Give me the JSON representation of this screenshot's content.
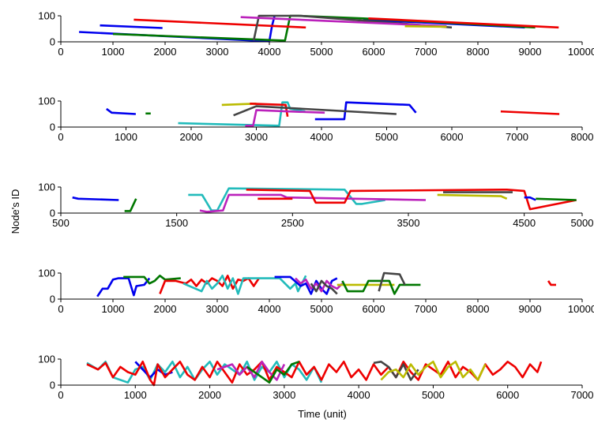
{
  "figure": {
    "ylabel": "Node's ID",
    "xlabel": "Time (unit)"
  },
  "colors": {
    "blue": "#0000ee",
    "green": "#007700",
    "red": "#ee0000",
    "cyan": "#22bbbb",
    "magenta": "#bb22bb",
    "olive": "#bbbb00",
    "darkgray": "#444444"
  },
  "chart_data": [
    {
      "type": "line",
      "xlim": [
        0,
        10000
      ],
      "ylim": [
        0,
        100
      ],
      "xticks": [
        0,
        1000,
        2000,
        3000,
        4000,
        5000,
        6000,
        7000,
        8000,
        9000,
        10000
      ],
      "yticks": [
        0,
        100
      ],
      "series": [
        {
          "color": "blue",
          "x": [
            350,
            4000
          ],
          "y": [
            38,
            2
          ]
        },
        {
          "color": "blue",
          "x": [
            750,
            1950
          ],
          "y": [
            63,
            53
          ]
        },
        {
          "color": "blue",
          "x": [
            4000,
            4050,
            4100
          ],
          "y": [
            2,
            60,
            100
          ]
        },
        {
          "color": "blue",
          "x": [
            5800,
            8900
          ],
          "y": [
            85,
            55
          ]
        },
        {
          "color": "green",
          "x": [
            1000,
            4300,
            4400,
            4550,
            5800,
            9100
          ],
          "y": [
            30,
            5,
            100,
            100,
            90,
            55
          ]
        },
        {
          "color": "red",
          "x": [
            1400,
            4700
          ],
          "y": [
            85,
            55
          ]
        },
        {
          "color": "red",
          "x": [
            5900,
            9550
          ],
          "y": [
            90,
            55
          ]
        },
        {
          "color": "darkgray",
          "x": [
            3700,
            3800,
            4600,
            7500
          ],
          "y": [
            5,
            100,
            100,
            55
          ]
        },
        {
          "color": "magenta",
          "x": [
            3450,
            7400
          ],
          "y": [
            95,
            60
          ]
        },
        {
          "color": "olive",
          "x": [
            6600,
            7400
          ],
          "y": [
            60,
            58
          ]
        }
      ]
    },
    {
      "type": "line",
      "xlim": [
        0,
        8000
      ],
      "ylim": [
        0,
        100
      ],
      "xticks": [
        0,
        1000,
        2000,
        3000,
        4000,
        5000,
        6000,
        7000,
        8000
      ],
      "yticks": [
        0,
        100
      ],
      "series": [
        {
          "color": "blue",
          "x": [
            700,
            780,
            1150
          ],
          "y": [
            70,
            55,
            50
          ]
        },
        {
          "color": "blue",
          "x": [
            3900,
            4350,
            4380,
            5350,
            5450
          ],
          "y": [
            30,
            30,
            95,
            85,
            55
          ]
        },
        {
          "color": "green",
          "x": [
            1300,
            1380
          ],
          "y": [
            52,
            52
          ]
        },
        {
          "color": "cyan",
          "x": [
            1800,
            3350,
            3400,
            3480,
            3520,
            3750
          ],
          "y": [
            15,
            5,
            95,
            95,
            70,
            60
          ]
        },
        {
          "color": "olive",
          "x": [
            2470,
            3000
          ],
          "y": [
            85,
            90
          ]
        },
        {
          "color": "red",
          "x": [
            2900,
            3450,
            3480
          ],
          "y": [
            90,
            85,
            40
          ]
        },
        {
          "color": "red",
          "x": [
            6750,
            7650
          ],
          "y": [
            60,
            50
          ]
        },
        {
          "color": "magenta",
          "x": [
            2830,
            2950,
            3000,
            3500,
            4050
          ],
          "y": [
            5,
            5,
            65,
            60,
            55
          ]
        },
        {
          "color": "darkgray",
          "x": [
            2650,
            3000,
            5150
          ],
          "y": [
            45,
            80,
            50
          ]
        }
      ]
    },
    {
      "type": "line",
      "xlim": [
        500,
        5000
      ],
      "ylim": [
        0,
        100
      ],
      "xticks": [
        500,
        1500,
        2500,
        3500,
        4500,
        5000
      ],
      "xtick_labels": [
        "500",
        "1500",
        "2500",
        "3500",
        "4500",
        "5000"
      ],
      "yticks": [
        0,
        100
      ],
      "series": [
        {
          "color": "blue",
          "x": [
            600,
            650,
            1000
          ],
          "y": [
            60,
            55,
            50
          ]
        },
        {
          "color": "green",
          "x": [
            1050,
            1100,
            1150
          ],
          "y": [
            8,
            8,
            55
          ]
        },
        {
          "color": "cyan",
          "x": [
            1600,
            1720,
            1800,
            1850,
            1950,
            2950,
            3050,
            3100,
            3300
          ],
          "y": [
            70,
            70,
            10,
            10,
            95,
            90,
            35,
            35,
            50
          ]
        },
        {
          "color": "magenta",
          "x": [
            1700,
            1760,
            1900,
            1950,
            2400,
            2450,
            3650
          ],
          "y": [
            10,
            5,
            10,
            70,
            70,
            60,
            50
          ]
        },
        {
          "color": "red",
          "x": [
            2200,
            2500
          ],
          "y": [
            55,
            55
          ]
        },
        {
          "color": "red",
          "x": [
            2100,
            2650,
            2700,
            2950,
            3000,
            4350,
            4500,
            4550,
            4950
          ],
          "y": [
            90,
            85,
            40,
            40,
            85,
            90,
            85,
            15,
            50
          ]
        },
        {
          "color": "olive",
          "x": [
            3750,
            4300,
            4350
          ],
          "y": [
            70,
            65,
            55
          ]
        },
        {
          "color": "blue",
          "x": [
            4500,
            4550,
            4600
          ],
          "y": [
            60,
            60,
            50
          ]
        },
        {
          "color": "darkgray",
          "x": [
            3800,
            4400
          ],
          "y": [
            80,
            80
          ]
        },
        {
          "color": "green",
          "x": [
            4600,
            4950
          ],
          "y": [
            55,
            50
          ]
        }
      ]
    },
    {
      "type": "line",
      "xlim": [
        0,
        10000
      ],
      "ylim": [
        0,
        100
      ],
      "xticks": [
        0,
        1000,
        2000,
        3000,
        4000,
        5000,
        6000,
        7000,
        8000,
        9000,
        10000
      ],
      "yticks": [
        0,
        100
      ],
      "series": [
        {
          "color": "blue",
          "x": [
            700,
            800,
            900,
            1000,
            1100,
            1300,
            1400,
            1450,
            1600,
            1700
          ],
          "y": [
            10,
            40,
            40,
            75,
            80,
            80,
            15,
            50,
            55,
            80
          ]
        },
        {
          "color": "green",
          "x": [
            1200,
            1600,
            1700,
            1800,
            1900,
            2000,
            2300
          ],
          "y": [
            85,
            85,
            60,
            70,
            90,
            75,
            80
          ]
        },
        {
          "color": "red",
          "x": [
            1900,
            2000,
            2200,
            2400,
            2500,
            2600,
            2700,
            2800,
            2900,
            3000,
            3100,
            3200,
            3300,
            3400,
            3500,
            3600,
            3700,
            3800
          ],
          "y": [
            20,
            70,
            70,
            60,
            75,
            50,
            75,
            60,
            80,
            70,
            50,
            90,
            40,
            75,
            70,
            80,
            50,
            80
          ]
        },
        {
          "color": "cyan",
          "x": [
            2350,
            2700,
            2800,
            2900,
            3000,
            3100,
            3200,
            3300,
            3400,
            3500,
            3600,
            4200,
            4400,
            4500,
            4550,
            4700
          ],
          "y": [
            60,
            30,
            70,
            40,
            60,
            90,
            40,
            80,
            20,
            80,
            80,
            80,
            40,
            60,
            30,
            90
          ]
        },
        {
          "color": "blue",
          "x": [
            4100,
            4400,
            4600,
            4700,
            4800,
            4900,
            5000,
            5100,
            5200,
            5300
          ],
          "y": [
            85,
            85,
            50,
            60,
            20,
            70,
            40,
            20,
            70,
            80
          ]
        },
        {
          "color": "magenta",
          "x": [
            4500,
            4600,
            4700,
            4800,
            4900,
            5000,
            5100,
            5200,
            5300,
            5400
          ],
          "y": [
            80,
            60,
            75,
            40,
            60,
            30,
            70,
            50,
            40,
            60
          ]
        },
        {
          "color": "darkgray",
          "x": [
            4800,
            4900,
            5000,
            5100,
            5200,
            5300
          ],
          "y": [
            60,
            30,
            70,
            50,
            40,
            20
          ]
        },
        {
          "color": "olive",
          "x": [
            5300,
            5700,
            6300,
            6400
          ],
          "y": [
            55,
            55,
            55,
            55
          ]
        },
        {
          "color": "green",
          "x": [
            5400,
            5500,
            5800,
            5900,
            6300,
            6400,
            6500,
            6900
          ],
          "y": [
            70,
            30,
            30,
            70,
            70,
            20,
            55,
            55
          ]
        },
        {
          "color": "darkgray",
          "x": [
            6100,
            6200,
            6500,
            6600
          ],
          "y": [
            30,
            100,
            95,
            55
          ]
        },
        {
          "color": "red",
          "x": [
            9350,
            9400,
            9500
          ],
          "y": [
            70,
            55,
            55
          ]
        }
      ]
    },
    {
      "type": "line",
      "xlim": [
        0,
        7000
      ],
      "ylim": [
        0,
        100
      ],
      "xticks": [
        0,
        1000,
        2000,
        3000,
        4000,
        5000,
        6000,
        7000
      ],
      "yticks": [
        0,
        100
      ],
      "series": [
        {
          "color": "cyan",
          "x": [
            350,
            500,
            600,
            700,
            900,
            1000,
            1100,
            1200,
            1300,
            1400,
            1500,
            1600,
            1700,
            1800,
            1900,
            2000,
            2100,
            2200,
            2300,
            2400,
            2500,
            2600,
            2700,
            2800,
            2900,
            3000,
            3100,
            3200,
            3300,
            3400,
            3500
          ],
          "y": [
            85,
            60,
            90,
            30,
            10,
            60,
            70,
            20,
            80,
            50,
            90,
            30,
            70,
            20,
            60,
            90,
            40,
            80,
            60,
            40,
            90,
            20,
            70,
            50,
            90,
            30,
            80,
            60,
            20,
            70,
            10
          ]
        },
        {
          "color": "blue",
          "x": [
            1000,
            1100,
            1200,
            1300,
            1400,
            1500
          ],
          "y": [
            90,
            60,
            30,
            60,
            40,
            50
          ]
        },
        {
          "color": "red",
          "x": [
            350,
            500,
            600,
            700,
            800,
            900,
            1000,
            1100,
            1200,
            1250,
            1300,
            1400,
            1500,
            1600,
            1700,
            1800,
            1900,
            2000,
            2100,
            2200,
            2300,
            2400,
            2500,
            2600,
            2700,
            2800,
            2900,
            3000,
            3100,
            3200,
            3300,
            3400,
            3500,
            3600,
            3700,
            3800,
            3900,
            4000,
            4100,
            4200,
            4300,
            4400,
            4500,
            4600,
            4700,
            4800,
            4900,
            5000,
            5100,
            5200,
            5300,
            5400,
            5500,
            5600,
            5700,
            5800,
            5900,
            6000,
            6100,
            6200,
            6300,
            6400,
            6450
          ],
          "y": [
            80,
            60,
            85,
            30,
            70,
            50,
            40,
            90,
            20,
            0,
            80,
            30,
            60,
            90,
            40,
            20,
            70,
            30,
            90,
            50,
            10,
            80,
            40,
            60,
            90,
            20,
            70,
            50,
            30,
            90,
            40,
            70,
            20,
            80,
            50,
            90,
            30,
            60,
            20,
            80,
            40,
            70,
            30,
            90,
            50,
            20,
            80,
            60,
            40,
            90,
            30,
            70,
            50,
            20,
            80,
            40,
            60,
            90,
            70,
            30,
            80,
            50,
            90
          ]
        },
        {
          "color": "magenta",
          "x": [
            2100,
            2300,
            2400,
            2500,
            2600,
            2700,
            2800,
            2900,
            3000
          ],
          "y": [
            60,
            80,
            40,
            70,
            30,
            90,
            50,
            20,
            80
          ]
        },
        {
          "color": "green",
          "x": [
            2500,
            2700,
            2800,
            2900,
            3000,
            3100,
            3200
          ],
          "y": [
            70,
            30,
            10,
            60,
            40,
            80,
            90
          ]
        },
        {
          "color": "darkgray",
          "x": [
            4200,
            4300,
            4400,
            4500,
            4600,
            4700,
            4800
          ],
          "y": [
            85,
            90,
            70,
            30,
            80,
            20,
            60
          ]
        },
        {
          "color": "olive",
          "x": [
            4300,
            4400,
            4500,
            4600,
            4700,
            4800,
            4900,
            5000,
            5100,
            5200,
            5300,
            5400,
            5500,
            5600,
            5700
          ],
          "y": [
            20,
            50,
            60,
            30,
            80,
            40,
            70,
            90,
            30,
            70,
            90,
            30,
            60,
            20,
            80
          ]
        }
      ]
    }
  ]
}
